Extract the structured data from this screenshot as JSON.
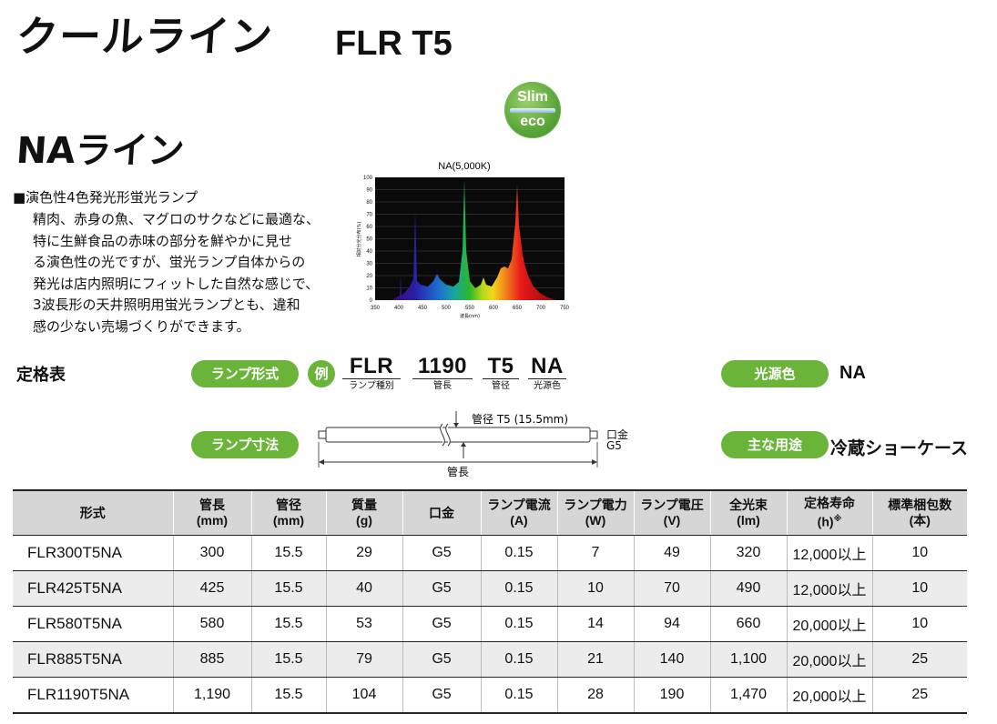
{
  "header": {
    "brand": "クールライン",
    "model": "FLR T5",
    "logo": {
      "line1": "Slim",
      "line2": "eco",
      "color": "#5aa63b"
    },
    "series": "NAライン"
  },
  "description": {
    "heading": "■演色性4色発光形蛍光ランプ",
    "body_lines": [
      "精肉、赤身の魚、マグロのサクなどに最適な、",
      "特に生鮮食品の赤味の部分を鮮やかに見せ",
      "る演色性の光ですが、蛍光ランプ自体からの",
      "発光は店内照明にフィットした自然な感じで、",
      "3波長形の天井照明用蛍光ランプとも、違和",
      "感の少ない売場づくりができます。"
    ]
  },
  "spectrum": {
    "title": "NA(5,000K)",
    "ylabel": "相対分光分布(%)",
    "xlabel": "波長(nm)",
    "xticks": [
      "350",
      "400",
      "450",
      "500",
      "550",
      "600",
      "650",
      "700",
      "750"
    ],
    "yticks": [
      "0",
      "10",
      "20",
      "30",
      "40",
      "50",
      "60",
      "70",
      "80",
      "90",
      "100"
    ]
  },
  "spec_section": {
    "label": "定格表",
    "lamp_type_label": "ランプ形式",
    "example_label": "例",
    "code_parts": [
      {
        "code": "FLR",
        "caption": "ランプ種別"
      },
      {
        "code": "1190",
        "caption": "管長"
      },
      {
        "code": "T5",
        "caption": "管径"
      },
      {
        "code": "NA",
        "caption": "光源色"
      }
    ],
    "light_color_label": "光源色",
    "light_color_value": "NA",
    "dimension_label": "ランプ寸法",
    "diagram": {
      "diameter_label": "管径 T5 (15.5mm)",
      "base_label_1": "口金",
      "base_label_2": "G5",
      "length_label": "管長"
    },
    "usage_label": "主な用途",
    "usage_value": "冷蔵ショーケース"
  },
  "table": {
    "headers": [
      [
        "形式"
      ],
      [
        "管長",
        "(mm)"
      ],
      [
        "管径",
        "(mm)"
      ],
      [
        "質量",
        "(g)"
      ],
      [
        "口金"
      ],
      [
        "ランプ電流",
        "(A)"
      ],
      [
        "ランプ電力",
        "(W)"
      ],
      [
        "ランプ電圧",
        "(V)"
      ],
      [
        "全光束",
        "(lm)"
      ],
      [
        "定格寿命",
        "(h)"
      ],
      [
        "標準梱包数",
        "(本)"
      ]
    ],
    "footnote_mark": "※",
    "rows": [
      [
        "FLR300T5NA",
        "300",
        "15.5",
        "29",
        "G5",
        "0.15",
        "7",
        "49",
        "320",
        "12,000以上",
        "10"
      ],
      [
        "FLR425T5NA",
        "425",
        "15.5",
        "40",
        "G5",
        "0.15",
        "10",
        "70",
        "490",
        "12,000以上",
        "10"
      ],
      [
        "FLR580T5NA",
        "580",
        "15.5",
        "53",
        "G5",
        "0.15",
        "14",
        "94",
        "660",
        "20,000以上",
        "10"
      ],
      [
        "FLR885T5NA",
        "885",
        "15.5",
        "79",
        "G5",
        "0.15",
        "21",
        "140",
        "1,100",
        "20,000以上",
        "25"
      ],
      [
        "FLR1190T5NA",
        "1,190",
        "15.5",
        "104",
        "G5",
        "0.15",
        "28",
        "190",
        "1,470",
        "20,000以上",
        "25"
      ]
    ]
  },
  "colors": {
    "accent": "#6ab43a",
    "header_bg": "#d6d6d6",
    "stripe": "#ececec"
  }
}
